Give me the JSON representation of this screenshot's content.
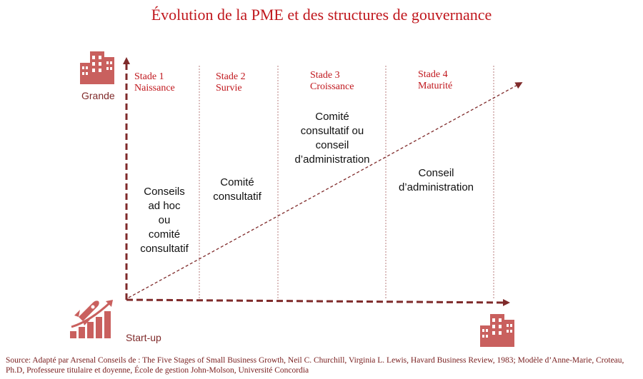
{
  "title": "Évolution de la PME et des structures de gouvernance",
  "stages": [
    {
      "number": "Stade 1",
      "name": "Naissance",
      "governance": [
        "Conseils",
        "ad hoc",
        "ou",
        "comité",
        "consultatif"
      ]
    },
    {
      "number": "Stade 2",
      "name": "Survie",
      "governance": [
        "Comité",
        "consultatif"
      ]
    },
    {
      "number": "Stade 3",
      "name": "Croissance",
      "governance": [
        "Comité",
        "consultatif ou",
        "conseil",
        "d’administration"
      ]
    },
    {
      "number": "Stade 4",
      "name": "Maturité",
      "governance": [
        "Conseil",
        "d’administration"
      ]
    }
  ],
  "axis": {
    "top_label": "Grande",
    "bottom_label": "Start-up"
  },
  "icons": {
    "top": "building-icon",
    "start": "rocket-growth-icon",
    "end": "building-icon"
  },
  "colors": {
    "accent": "#c0171d",
    "dark_red": "#7f2a2a",
    "icon": "#c9605e"
  },
  "source": "Source: Adapté par Arsenal Conseils de : The Five Stages of Small Business Growth, Neil C. Churchill, Virginia L. Lewis, Havard Business Review, 1983; Modèle d’Anne-Marie, Croteau, Ph.D, Professeure titulaire et doyenne, École de gestion John-Molson, Université Concordia"
}
